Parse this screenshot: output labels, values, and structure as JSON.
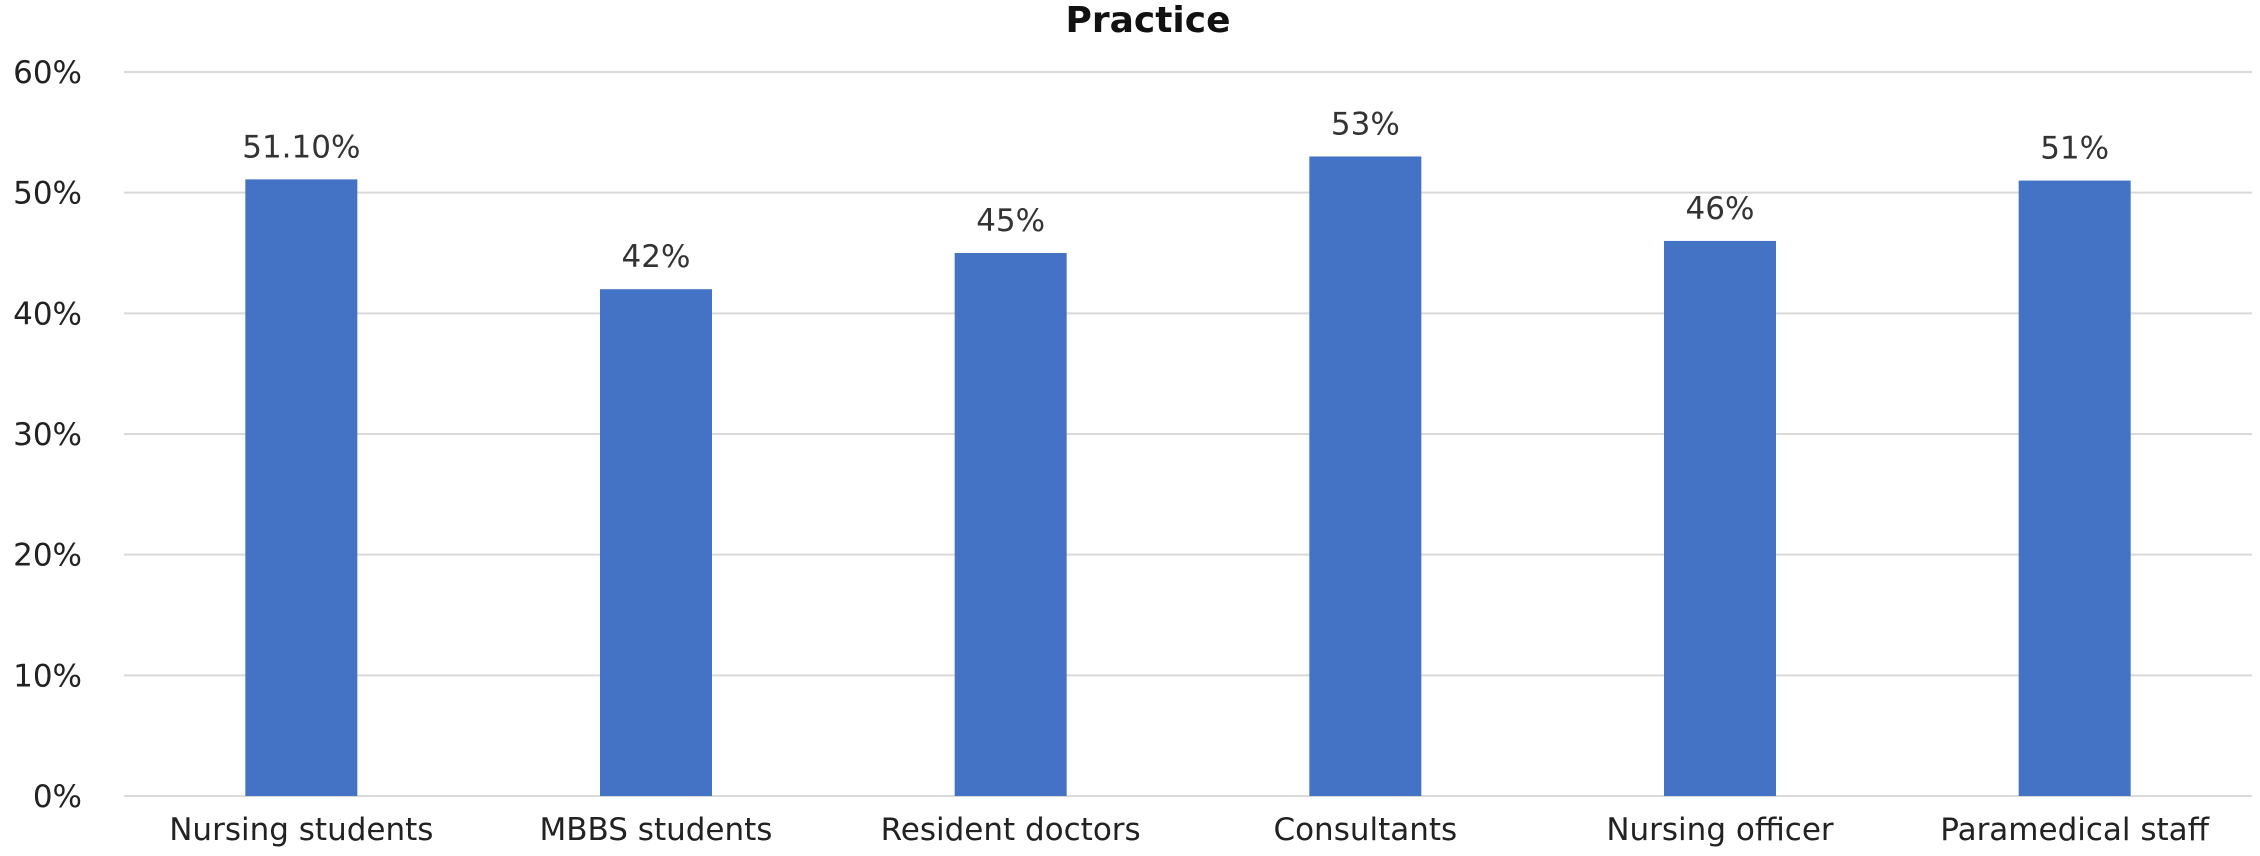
{
  "chart_data": {
    "type": "bar",
    "title": "Practice",
    "xlabel": "",
    "ylabel": "",
    "categories": [
      "Nursing students",
      "MBBS students",
      "Resident doctors",
      "Consultants",
      "Nursing officer",
      "Paramedical staff"
    ],
    "values": [
      51.1,
      42,
      45,
      53,
      46,
      51
    ],
    "data_labels": [
      "51.10%",
      "42%",
      "45%",
      "53%",
      "46%",
      "51%"
    ],
    "ylim": [
      0,
      60
    ],
    "yticks": [
      0,
      10,
      20,
      30,
      40,
      50,
      60
    ],
    "ytick_labels": [
      "0%",
      "10%",
      "20%",
      "30%",
      "40%",
      "50%",
      "60%"
    ],
    "grid": true,
    "legend": "none",
    "bar_color": "#4472c4"
  }
}
